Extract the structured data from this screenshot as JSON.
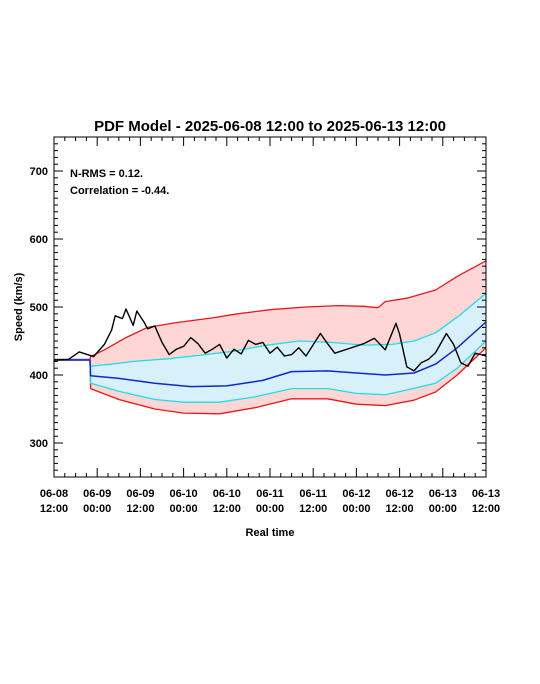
{
  "chart_data": {
    "type": "line",
    "title": "PDF Model - 2025-06-08 12:00 to 2025-06-13 12:00",
    "xlabel": "Real time",
    "ylabel": "Speed (km/s)",
    "xlim": [
      "2025-06-08 12:00",
      "2025-06-13 12:00"
    ],
    "ylim": [
      250,
      750
    ],
    "annotations": [
      "N-RMS = 0.12.",
      "Correlation = -0.44."
    ],
    "x_ticks": [
      {
        "time": "2025-06-08 12:00",
        "line1": "06-08",
        "line2": "12:00"
      },
      {
        "time": "2025-06-09 00:00",
        "line1": "06-09",
        "line2": "00:00"
      },
      {
        "time": "2025-06-09 12:00",
        "line1": "06-09",
        "line2": "12:00"
      },
      {
        "time": "2025-06-10 00:00",
        "line1": "06-10",
        "line2": "00:00"
      },
      {
        "time": "2025-06-10 12:00",
        "line1": "06-10",
        "line2": "12:00"
      },
      {
        "time": "2025-06-11 00:00",
        "line1": "06-11",
        "line2": "00:00"
      },
      {
        "time": "2025-06-11 12:00",
        "line1": "06-11",
        "line2": "12:00"
      },
      {
        "time": "2025-06-12 00:00",
        "line1": "06-12",
        "line2": "00:00"
      },
      {
        "time": "2025-06-12 12:00",
        "line1": "06-12",
        "line2": "12:00"
      },
      {
        "time": "2025-06-13 00:00",
        "line1": "06-13",
        "line2": "00:00"
      },
      {
        "time": "2025-06-13 12:00",
        "line1": "06-13",
        "line2": "12:00"
      }
    ],
    "y_ticks": [
      300,
      400,
      500,
      600,
      700
    ],
    "colors": {
      "outer_band": "#ffd6d6",
      "inner_band": "#d8f0fa",
      "outer_line": "#e8171c",
      "inner_line": "#22dde8",
      "median_line": "#1428c8",
      "observed_line": "#000000",
      "axes": "#000000"
    },
    "series": [
      {
        "key": "upper_outer",
        "times": [
          "2025-06-08 12:00",
          "2025-06-08 22:00",
          "2025-06-08 22:10",
          "2025-06-09 02:00",
          "2025-06-09 08:00",
          "2025-06-09 14:00",
          "2025-06-09 22:00",
          "2025-06-10 08:00",
          "2025-06-10 15:00",
          "2025-06-11 00:00",
          "2025-06-11 10:00",
          "2025-06-11 19:00",
          "2025-06-12 02:00",
          "2025-06-12 06:00",
          "2025-06-12 08:00",
          "2025-06-12 14:00",
          "2025-06-12 22:00",
          "2025-06-13 04:00",
          "2025-06-13 12:00"
        ],
        "values": [
          423,
          423,
          427,
          437,
          455,
          470,
          477,
          484,
          490,
          496,
          500,
          502,
          501,
          499,
          508,
          513,
          525,
          545,
          568
        ]
      },
      {
        "key": "upper_inner",
        "times": [
          "2025-06-08 12:00",
          "2025-06-08 22:00",
          "2025-06-08 22:10",
          "2025-06-09 04:00",
          "2025-06-09 10:00",
          "2025-06-09 20:00",
          "2025-06-10 06:00",
          "2025-06-10 14:00",
          "2025-06-10 22:00",
          "2025-06-11 08:00",
          "2025-06-11 17:00",
          "2025-06-12 02:00",
          "2025-06-12 10:00",
          "2025-06-12 16:00",
          "2025-06-12 22:00",
          "2025-06-13 04:00",
          "2025-06-13 12:00"
        ],
        "values": [
          422,
          422,
          413,
          416,
          420,
          424,
          430,
          435,
          443,
          450,
          448,
          444,
          445,
          450,
          462,
          485,
          520
        ]
      },
      {
        "key": "median",
        "times": [
          "2025-06-08 12:00",
          "2025-06-08 22:00",
          "2025-06-08 22:10",
          "2025-06-09 06:00",
          "2025-06-09 16:00",
          "2025-06-10 02:00",
          "2025-06-10 12:00",
          "2025-06-10 22:00",
          "2025-06-11 06:00",
          "2025-06-11 16:00",
          "2025-06-12 00:00",
          "2025-06-12 08:00",
          "2025-06-12 16:00",
          "2025-06-12 22:00",
          "2025-06-13 04:00",
          "2025-06-13 12:00"
        ],
        "values": [
          422,
          422,
          399,
          395,
          388,
          383,
          384,
          392,
          405,
          406,
          403,
          400,
          403,
          416,
          440,
          478
        ]
      },
      {
        "key": "lower_inner",
        "times": [
          "2025-06-08 12:00",
          "2025-06-08 22:00",
          "2025-06-08 22:10",
          "2025-06-09 06:00",
          "2025-06-09 16:00",
          "2025-06-10 00:00",
          "2025-06-10 10:00",
          "2025-06-10 20:00",
          "2025-06-11 06:00",
          "2025-06-11 16:00",
          "2025-06-12 00:00",
          "2025-06-12 08:00",
          "2025-06-12 14:00",
          "2025-06-12 22:00",
          "2025-06-13 04:00",
          "2025-06-13 12:00"
        ],
        "values": [
          422,
          422,
          388,
          376,
          364,
          360,
          360,
          368,
          380,
          380,
          373,
          371,
          378,
          388,
          410,
          450
        ]
      },
      {
        "key": "lower_outer",
        "times": [
          "2025-06-08 12:00",
          "2025-06-08 22:00",
          "2025-06-08 22:10",
          "2025-06-09 06:00",
          "2025-06-09 16:00",
          "2025-06-10 00:00",
          "2025-06-10 10:00",
          "2025-06-10 20:00",
          "2025-06-11 06:00",
          "2025-06-11 16:00",
          "2025-06-12 00:00",
          "2025-06-12 08:00",
          "2025-06-12 16:00",
          "2025-06-12 22:00",
          "2025-06-13 04:00",
          "2025-06-13 12:00"
        ],
        "values": [
          422,
          422,
          380,
          364,
          350,
          344,
          343,
          352,
          365,
          365,
          357,
          355,
          363,
          375,
          400,
          440
        ]
      },
      {
        "key": "observed",
        "times": [
          "2025-06-08 12:00",
          "2025-06-08 16:00",
          "2025-06-08 19:00",
          "2025-06-08 23:00",
          "2025-06-09 02:00",
          "2025-06-09 04:00",
          "2025-06-09 05:00",
          "2025-06-09 07:00",
          "2025-06-09 08:00",
          "2025-06-09 10:00",
          "2025-06-09 11:00",
          "2025-06-09 13:00",
          "2025-06-09 14:00",
          "2025-06-09 16:00",
          "2025-06-09 18:00",
          "2025-06-09 20:00",
          "2025-06-09 22:00",
          "2025-06-10 00:00",
          "2025-06-10 02:00",
          "2025-06-10 04:00",
          "2025-06-10 06:00",
          "2025-06-10 08:00",
          "2025-06-10 10:00",
          "2025-06-10 12:00",
          "2025-06-10 14:00",
          "2025-06-10 16:00",
          "2025-06-10 18:00",
          "2025-06-10 20:00",
          "2025-06-10 22:00",
          "2025-06-11 00:00",
          "2025-06-11 02:00",
          "2025-06-11 04:00",
          "2025-06-11 06:00",
          "2025-06-11 08:00",
          "2025-06-11 10:00",
          "2025-06-11 14:00",
          "2025-06-11 16:00",
          "2025-06-11 18:00",
          "2025-06-11 22:00",
          "2025-06-12 02:00",
          "2025-06-12 05:00",
          "2025-06-12 08:00",
          "2025-06-12 11:00",
          "2025-06-12 12:00",
          "2025-06-12 14:00",
          "2025-06-12 16:00",
          "2025-06-12 18:00",
          "2025-06-12 20:00",
          "2025-06-12 22:00",
          "2025-06-13 01:00",
          "2025-06-13 03:00",
          "2025-06-13 05:00",
          "2025-06-13 07:00",
          "2025-06-13 09:00",
          "2025-06-13 12:00"
        ],
        "values": [
          422,
          423,
          434,
          427,
          445,
          466,
          487,
          483,
          497,
          473,
          494,
          478,
          468,
          472,
          448,
          430,
          438,
          442,
          455,
          446,
          432,
          438,
          445,
          425,
          438,
          431,
          451,
          445,
          448,
          432,
          441,
          428,
          430,
          440,
          428,
          461,
          446,
          432,
          439,
          446,
          454,
          437,
          476,
          460,
          412,
          406,
          418,
          423,
          433,
          461,
          445,
          418,
          413,
          432,
          428
        ]
      }
    ]
  }
}
